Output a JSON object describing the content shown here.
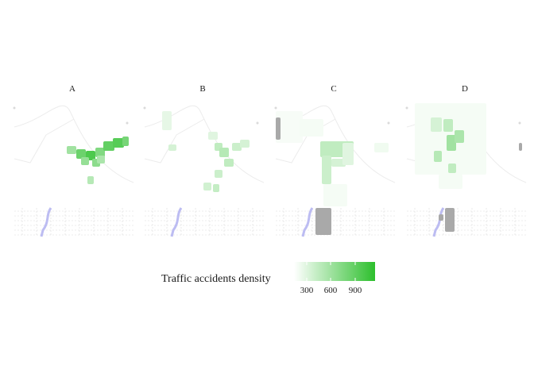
{
  "panels": [
    {
      "label": "A"
    },
    {
      "label": "B"
    },
    {
      "label": "C"
    },
    {
      "label": "D"
    }
  ],
  "legend": {
    "title": "Traffic accidents density",
    "ticks": [
      "300",
      "600",
      "900"
    ],
    "low_color": "#ffffff",
    "high_color": "#2dbf2d",
    "missing_color": "#a9a9a9"
  },
  "colors": {
    "road": "#dadada",
    "river": "#bcbcf2",
    "boundary": "#ececec"
  }
}
